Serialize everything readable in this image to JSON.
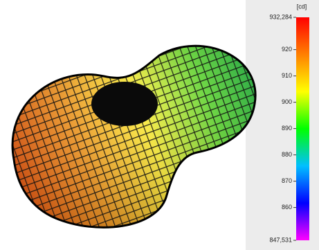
{
  "chart_data": {
    "type": "surface3d",
    "colorbar_unit": "[cd]",
    "clim": [
      847.531,
      932.284
    ],
    "cticks": [
      {
        "value": 932.284,
        "label": "932,284"
      },
      920,
      910,
      900,
      890,
      880,
      870,
      860,
      {
        "value": 847.531,
        "label": "847,531"
      }
    ],
    "colormap": [
      "#ff00ff",
      "#0000ff",
      "#00bfff",
      "#00ff00",
      "#ffff00",
      "#ff8000",
      "#ff0000"
    ]
  }
}
